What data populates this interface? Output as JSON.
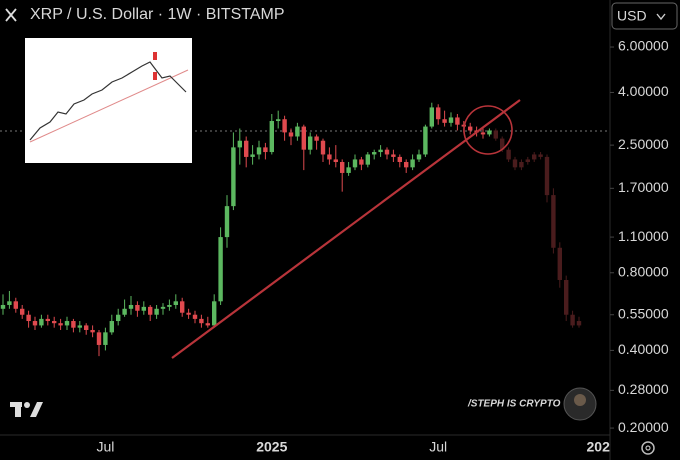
{
  "chart_data": {
    "type": "candlestick",
    "title": "XRP / U.S. Dollar · 1W · BITSTAMP",
    "currency": "USD",
    "watermark": "/STEPH IS CRYPTO",
    "log_y": true,
    "up_color": "#5cb860",
    "down_color": "#e04a4f",
    "projection_color": "#4a1c1d",
    "ylim": [
      0.188,
      9.13
    ],
    "yticks": [
      {
        "value": 0.2,
        "label": "0.20000"
      },
      {
        "value": 0.28,
        "label": "0.28000"
      },
      {
        "value": 0.4,
        "label": "0.40000"
      },
      {
        "value": 0.55,
        "label": "0.55000"
      },
      {
        "value": 0.8,
        "label": "0.80000"
      },
      {
        "value": 1.1,
        "label": "1.10000"
      },
      {
        "value": 1.7,
        "label": "1.70000"
      },
      {
        "value": 2.5,
        "label": "2.50000"
      },
      {
        "value": 4,
        "label": "4.00000"
      },
      {
        "value": 6,
        "label": "6.00000"
      }
    ],
    "categories": [
      null,
      null,
      null,
      null,
      null,
      null,
      null,
      null,
      null,
      null,
      null,
      null,
      null,
      null,
      null,
      null,
      "Jul",
      null,
      null,
      null,
      null,
      null,
      null,
      null,
      null,
      null,
      null,
      null,
      null,
      null,
      null,
      null,
      null,
      null,
      null,
      null,
      null,
      null,
      null,
      null,
      null,
      null,
      "2025",
      null,
      null,
      null,
      null,
      null,
      null,
      null,
      null,
      null,
      null,
      null,
      null,
      null,
      null,
      null,
      null,
      null,
      null,
      null,
      null,
      null,
      null,
      null,
      null,
      null,
      "Jul",
      null,
      null,
      null,
      null,
      null,
      null,
      null,
      null,
      null,
      null,
      null,
      null,
      null,
      null,
      null,
      null,
      null,
      null,
      null,
      null,
      null,
      null,
      null,
      null,
      "202"
    ],
    "ohlc": [
      [
        0.58,
        0.66,
        0.55,
        0.6
      ],
      [
        0.6,
        0.68,
        0.58,
        0.62
      ],
      [
        0.62,
        0.64,
        0.56,
        0.58
      ],
      [
        0.58,
        0.6,
        0.53,
        0.55
      ],
      [
        0.55,
        0.57,
        0.49,
        0.52
      ],
      [
        0.52,
        0.54,
        0.48,
        0.5
      ],
      [
        0.5,
        0.55,
        0.49,
        0.53
      ],
      [
        0.53,
        0.55,
        0.5,
        0.52
      ],
      [
        0.52,
        0.54,
        0.49,
        0.51
      ],
      [
        0.51,
        0.53,
        0.48,
        0.5
      ],
      [
        0.5,
        0.54,
        0.48,
        0.52
      ],
      [
        0.52,
        0.53,
        0.47,
        0.49
      ],
      [
        0.49,
        0.52,
        0.47,
        0.5
      ],
      [
        0.5,
        0.51,
        0.46,
        0.48
      ],
      [
        0.48,
        0.5,
        0.45,
        0.47
      ],
      [
        0.47,
        0.48,
        0.38,
        0.42
      ],
      [
        0.42,
        0.49,
        0.4,
        0.47
      ],
      [
        0.47,
        0.55,
        0.46,
        0.52
      ],
      [
        0.52,
        0.58,
        0.5,
        0.55
      ],
      [
        0.55,
        0.63,
        0.54,
        0.58
      ],
      [
        0.58,
        0.65,
        0.55,
        0.6
      ],
      [
        0.6,
        0.62,
        0.54,
        0.57
      ],
      [
        0.57,
        0.62,
        0.55,
        0.59
      ],
      [
        0.59,
        0.6,
        0.52,
        0.55
      ],
      [
        0.55,
        0.6,
        0.53,
        0.58
      ],
      [
        0.58,
        0.61,
        0.55,
        0.59
      ],
      [
        0.59,
        0.63,
        0.57,
        0.6
      ],
      [
        0.6,
        0.66,
        0.58,
        0.62
      ],
      [
        0.62,
        0.64,
        0.54,
        0.56
      ],
      [
        0.56,
        0.58,
        0.53,
        0.55
      ],
      [
        0.55,
        0.57,
        0.51,
        0.53
      ],
      [
        0.53,
        0.55,
        0.49,
        0.51
      ],
      [
        0.51,
        0.54,
        0.49,
        0.5
      ],
      [
        0.5,
        0.66,
        0.49,
        0.62
      ],
      [
        0.62,
        1.2,
        0.6,
        1.1
      ],
      [
        1.1,
        1.6,
        1.0,
        1.45
      ],
      [
        1.45,
        2.8,
        1.4,
        2.45
      ],
      [
        2.45,
        2.9,
        2.1,
        2.6
      ],
      [
        2.6,
        2.7,
        2.05,
        2.25
      ],
      [
        2.25,
        2.5,
        2.1,
        2.3
      ],
      [
        2.3,
        2.6,
        2.2,
        2.45
      ],
      [
        2.45,
        2.55,
        2.2,
        2.35
      ],
      [
        2.35,
        3.3,
        2.3,
        3.1
      ],
      [
        3.1,
        3.4,
        2.9,
        3.15
      ],
      [
        3.15,
        3.25,
        2.6,
        2.8
      ],
      [
        2.8,
        2.9,
        2.5,
        2.7
      ],
      [
        2.7,
        3.05,
        2.6,
        2.95
      ],
      [
        2.95,
        3.0,
        2.0,
        2.4
      ],
      [
        2.4,
        2.8,
        2.3,
        2.7
      ],
      [
        2.7,
        2.75,
        2.4,
        2.6
      ],
      [
        2.6,
        2.65,
        2.15,
        2.3
      ],
      [
        2.3,
        2.45,
        2.1,
        2.2
      ],
      [
        2.2,
        2.5,
        2.05,
        2.15
      ],
      [
        2.15,
        2.2,
        1.65,
        1.95
      ],
      [
        1.95,
        2.15,
        1.9,
        2.05
      ],
      [
        2.05,
        2.3,
        2.0,
        2.2
      ],
      [
        2.2,
        2.25,
        2.0,
        2.1
      ],
      [
        2.1,
        2.35,
        2.05,
        2.3
      ],
      [
        2.3,
        2.4,
        2.2,
        2.35
      ],
      [
        2.35,
        2.5,
        2.25,
        2.4
      ],
      [
        2.4,
        2.45,
        2.2,
        2.3
      ],
      [
        2.3,
        2.4,
        2.15,
        2.25
      ],
      [
        2.25,
        2.3,
        2.05,
        2.15
      ],
      [
        2.15,
        2.2,
        1.95,
        2.05
      ],
      [
        2.05,
        2.3,
        2.0,
        2.2
      ],
      [
        2.2,
        2.4,
        2.15,
        2.3
      ],
      [
        2.3,
        3.0,
        2.25,
        2.95
      ],
      [
        2.95,
        3.65,
        2.9,
        3.5
      ],
      [
        3.5,
        3.6,
        3.0,
        3.15
      ],
      [
        3.15,
        3.4,
        2.95,
        3.05
      ],
      [
        3.05,
        3.35,
        2.95,
        3.2
      ],
      [
        3.2,
        3.3,
        2.85,
        3.0
      ],
      [
        3.0,
        3.1,
        2.8,
        2.95
      ],
      [
        2.95,
        3.05,
        2.75,
        2.85
      ],
      [
        2.85,
        2.95,
        2.7,
        2.8
      ],
      [
        2.8,
        2.9,
        2.65,
        2.75
      ],
      [
        2.75,
        2.9,
        2.7,
        2.85
      ]
    ],
    "projection": [
      [
        2.85,
        2.9,
        2.6,
        2.65
      ],
      [
        2.65,
        2.7,
        2.35,
        2.4
      ],
      [
        2.4,
        2.45,
        2.15,
        2.2
      ],
      [
        2.2,
        2.25,
        2.0,
        2.05
      ],
      [
        2.05,
        2.2,
        2.0,
        2.15
      ],
      [
        2.15,
        2.25,
        2.1,
        2.2
      ],
      [
        2.2,
        2.35,
        2.15,
        2.3
      ],
      [
        2.3,
        2.35,
        2.2,
        2.25
      ],
      [
        2.25,
        2.3,
        1.5,
        1.6
      ],
      [
        1.6,
        1.7,
        0.95,
        1.0
      ],
      [
        1.0,
        1.05,
        0.7,
        0.75
      ],
      [
        0.75,
        0.78,
        0.52,
        0.55
      ],
      [
        0.55,
        0.57,
        0.49,
        0.5
      ],
      [
        0.5,
        0.54,
        0.49,
        0.52
      ]
    ]
  }
}
